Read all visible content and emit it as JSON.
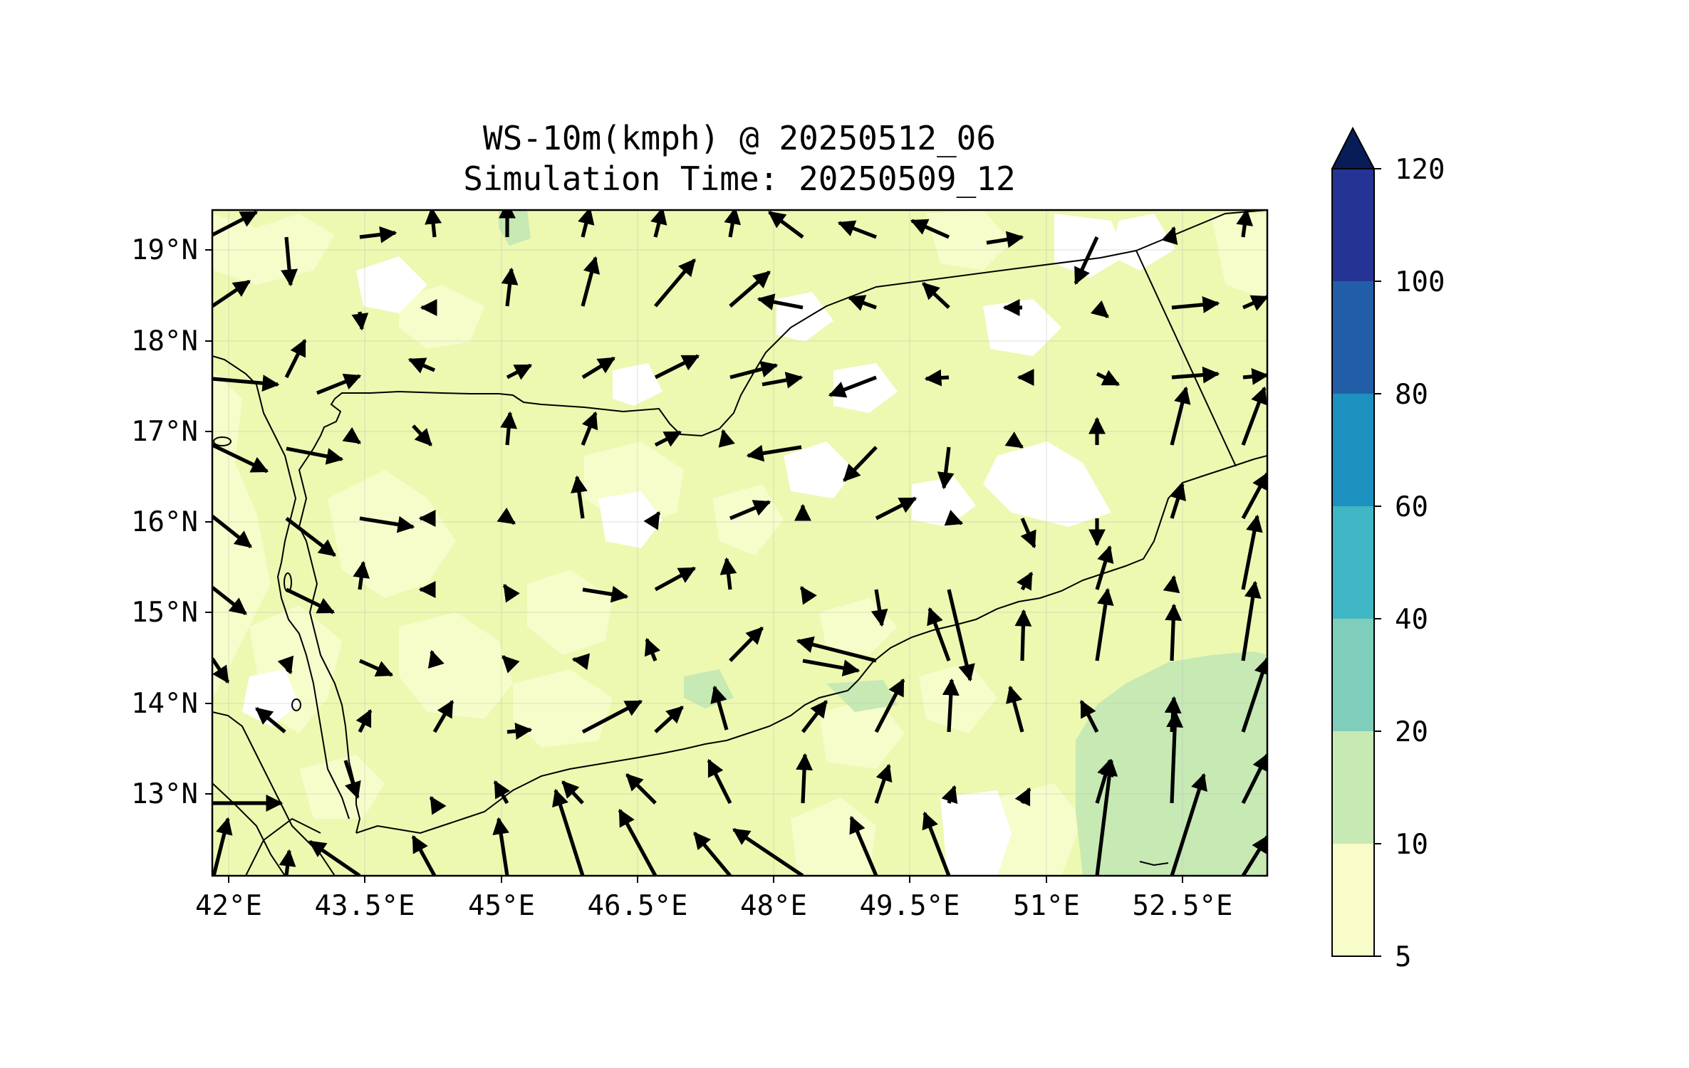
{
  "title": {
    "line1": "WS-10m(kmph) @ 20250512_06",
    "line2": "Simulation Time: 20250509_12"
  },
  "map": {
    "lon_range": [
      41.8,
      53.8
    ],
    "lat_range": [
      12.1,
      19.45
    ],
    "lon_ticks": [
      "42°E",
      "43.5°E",
      "45°E",
      "46.5°E",
      "48°E",
      "49.5°E",
      "51°E",
      "52.5°E"
    ],
    "lon_tick_values": [
      42,
      43.5,
      45,
      46.5,
      48,
      49.5,
      51,
      52.5
    ],
    "lat_ticks": [
      "13°N",
      "14°N",
      "15°N",
      "16°N",
      "17°N",
      "18°N",
      "19°N"
    ],
    "lat_tick_values": [
      13,
      14,
      15,
      16,
      17,
      18,
      19
    ],
    "gridlines": true
  },
  "colorbar": {
    "levels": [
      "5",
      "10",
      "20",
      "40",
      "60",
      "80",
      "100",
      "120"
    ],
    "colors": [
      "#ffffd9",
      "#edf8b1",
      "#c7e9b4",
      "#7fcdbb",
      "#41b6c4",
      "#1d91c0",
      "#225ea8",
      "#253494"
    ],
    "extend_color": "#081d58",
    "extend": "max"
  },
  "colors": {
    "land_base": "#edf8b1",
    "calm": "#ffffff",
    "pale": "#f7fccb",
    "strong": "#c7e9b4",
    "coast": "#000000",
    "arrow": "#000000"
  },
  "chart_data": {
    "type": "heatmap",
    "variable": "WS-10m(kmph)",
    "valid_time": "20250512_06",
    "simulation_time": "20250509_12",
    "dominant_range_kmph": [
      10,
      20
    ],
    "max_region_range_kmph": [
      20,
      40
    ],
    "max_region_location": "south-east near 52.5°E, 13–14.5°N"
  }
}
